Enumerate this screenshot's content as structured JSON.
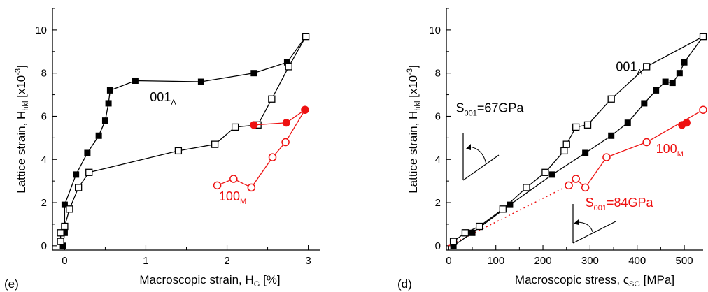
{
  "chart_data": [
    {
      "type": "line",
      "panel_label": "(e)",
      "xlabel": "Macroscopic strain, H",
      "xlabel_sub": "G",
      "xlabel_tail": " [%]",
      "ylabel": "Lattice strain, H",
      "ylabel_sub": "hkl",
      "ylabel_tail": " [x10",
      "ylabel_sup": "-3",
      "ylabel_end": "]",
      "xlim": [
        -0.15,
        3.15
      ],
      "ylim": [
        -0.2,
        11
      ],
      "xticks": [
        0,
        1,
        2,
        3
      ],
      "yticks": [
        0,
        2,
        4,
        6,
        8,
        10
      ],
      "grid": false,
      "legend": "none",
      "series": [
        {
          "color": "#000000",
          "marker": "filled-square",
          "points": [
            [
              -0.02,
              0.0
            ],
            [
              0.0,
              0.6
            ],
            [
              0.0,
              1.9
            ],
            [
              0.14,
              3.3
            ],
            [
              0.28,
              4.3
            ],
            [
              0.42,
              5.1
            ],
            [
              0.5,
              5.8
            ],
            [
              0.54,
              6.6
            ],
            [
              0.56,
              7.2
            ],
            [
              0.87,
              7.65
            ],
            [
              1.68,
              7.6
            ],
            [
              2.33,
              8.0
            ],
            [
              2.74,
              8.5
            ],
            [
              2.97,
              9.7
            ]
          ]
        },
        {
          "color": "#000000",
          "marker": "open-square",
          "points": [
            [
              -0.05,
              0.2
            ],
            [
              -0.05,
              0.6
            ],
            [
              0.0,
              0.9
            ],
            [
              0.06,
              1.7
            ],
            [
              0.17,
              2.7
            ],
            [
              0.3,
              3.4
            ],
            [
              1.4,
              4.4
            ],
            [
              1.85,
              4.7
            ],
            [
              2.1,
              5.5
            ],
            [
              2.38,
              5.6
            ],
            [
              2.55,
              6.8
            ],
            [
              2.76,
              8.3
            ],
            [
              2.97,
              9.7
            ]
          ]
        },
        {
          "color": "#ee1111",
          "marker": "open-circle",
          "points": [
            [
              1.88,
              2.8
            ],
            [
              2.08,
              3.1
            ],
            [
              2.3,
              2.7
            ],
            [
              2.56,
              4.1
            ],
            [
              2.72,
              4.8
            ],
            [
              2.96,
              6.3
            ]
          ]
        },
        {
          "color": "#ee1111",
          "marker": "filled-circle",
          "points": [
            [
              2.33,
              5.6
            ],
            [
              2.73,
              5.7
            ],
            [
              2.96,
              6.3
            ]
          ]
        }
      ],
      "annotations": [
        {
          "text": "001",
          "sub": "A",
          "color": "#000000",
          "x": 1.05,
          "y": 6.7
        },
        {
          "text": "100",
          "sub": "M",
          "color": "#ee1111",
          "x": 1.9,
          "y": 2.1
        }
      ]
    },
    {
      "type": "line",
      "panel_label": "(d)",
      "xlabel": "Macroscopic stress, ",
      "xlabel_sym": "ς",
      "xlabel_sub": "SG",
      "xlabel_tail": " [MPa]",
      "ylabel": "Lattice strain, H",
      "ylabel_sub": "hkl",
      "ylabel_tail": " [x10",
      "ylabel_sup": "-3",
      "ylabel_end": "]",
      "xlim": [
        -5,
        540
      ],
      "ylim": [
        -0.2,
        11
      ],
      "xticks": [
        0,
        100,
        200,
        300,
        400,
        500
      ],
      "yticks": [
        0,
        2,
        4,
        6,
        8,
        10
      ],
      "grid": false,
      "legend": "none",
      "series": [
        {
          "color": "#000000",
          "marker": "filled-square",
          "points": [
            [
              10,
              0.0
            ],
            [
              50,
              0.6
            ],
            [
              130,
              1.9
            ],
            [
              220,
              3.3
            ],
            [
              290,
              4.3
            ],
            [
              345,
              5.1
            ],
            [
              380,
              5.7
            ],
            [
              415,
              6.6
            ],
            [
              440,
              7.2
            ],
            [
              460,
              7.6
            ],
            [
              475,
              7.55
            ],
            [
              490,
              8.0
            ],
            [
              500,
              8.5
            ],
            [
              540,
              9.7
            ]
          ]
        },
        {
          "color": "#000000",
          "marker": "open-square",
          "points": [
            [
              10,
              0.2
            ],
            [
              35,
              0.6
            ],
            [
              65,
              0.9
            ],
            [
              115,
              1.7
            ],
            [
              165,
              2.7
            ],
            [
              205,
              3.4
            ],
            [
              245,
              4.4
            ],
            [
              250,
              4.7
            ],
            [
              270,
              5.5
            ],
            [
              295,
              5.6
            ],
            [
              345,
              6.8
            ],
            [
              420,
              8.3
            ],
            [
              540,
              9.7
            ]
          ]
        },
        {
          "color": "#ee1111",
          "marker": "open-circle",
          "points": [
            [
              255,
              2.8
            ],
            [
              270,
              3.1
            ],
            [
              290,
              2.7
            ],
            [
              335,
              4.1
            ],
            [
              420,
              4.8
            ],
            [
              540,
              6.3
            ]
          ]
        },
        {
          "color": "#ee1111",
          "marker": "filled-circle",
          "points": [
            [
              495,
              5.6
            ],
            [
              505,
              5.7
            ]
          ]
        }
      ],
      "reference_lines": [
        {
          "color": "#ee1111",
          "style": "dotted",
          "from": [
            0,
            0.0
          ],
          "to": [
            255,
            2.8
          ]
        }
      ],
      "annotations": [
        {
          "text": "001",
          "sub": "A",
          "color": "#000000",
          "x": 355,
          "y": 8.1
        },
        {
          "text": "100",
          "sub": "M",
          "color": "#ee1111",
          "x": 440,
          "y": 4.3
        },
        {
          "text": "S",
          "sub": "001",
          "tail": "=67GPa",
          "color": "#000000",
          "x": 15,
          "y": 6.2
        },
        {
          "text": "S",
          "sub": "001",
          "tail": "=84GPa",
          "color": "#ee1111",
          "x": 290,
          "y": 1.8
        }
      ]
    }
  ]
}
